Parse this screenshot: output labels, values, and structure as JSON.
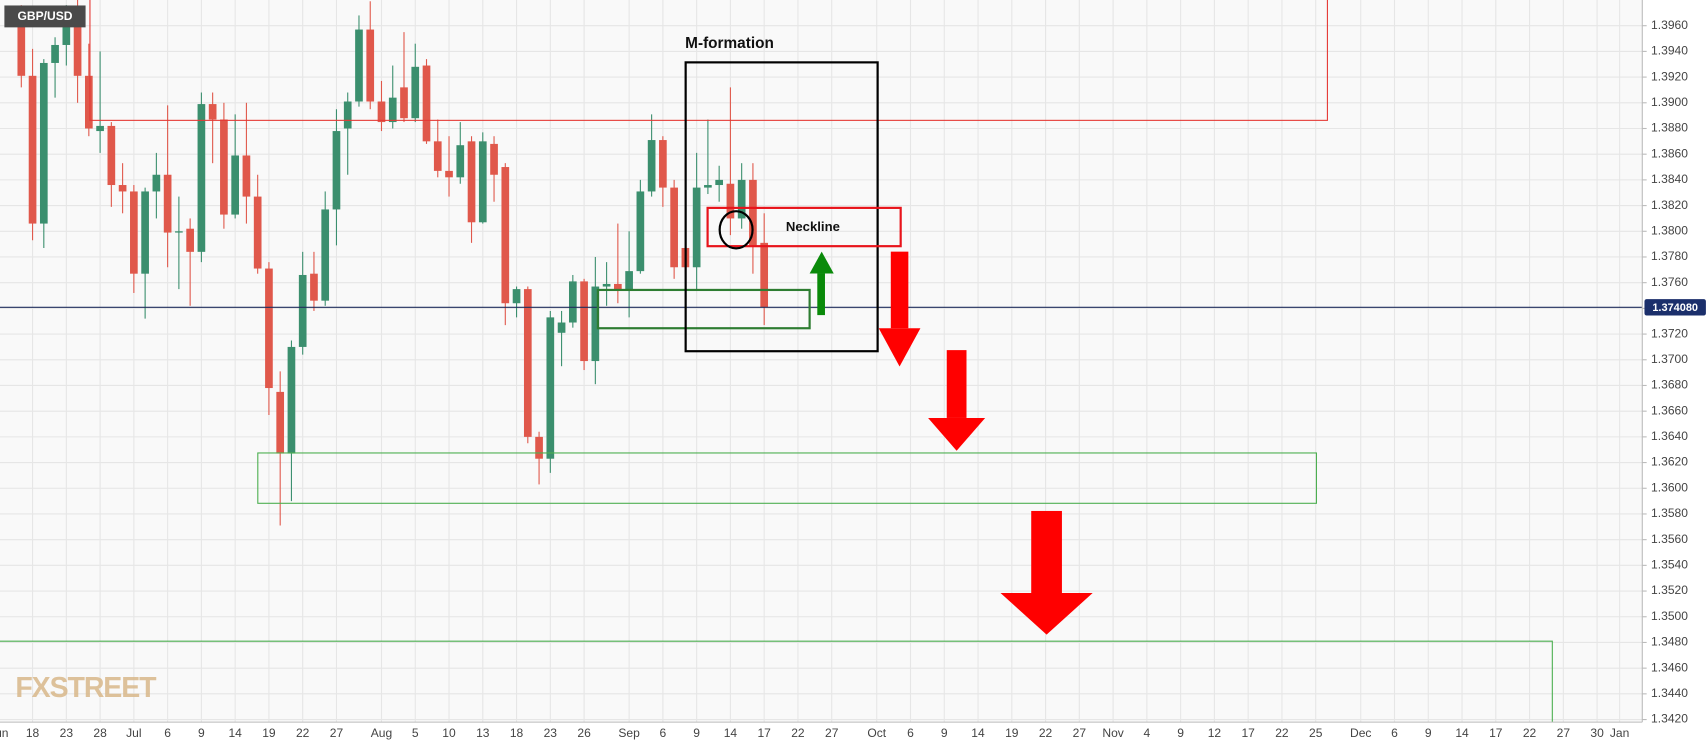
{
  "chart_data": {
    "type": "candlestick",
    "symbol": "GBP/USD",
    "watermark": "FXSTREET",
    "up_color": "#3b8f6e",
    "down_color": "#e0584b",
    "grid": true,
    "ylim": [
      1.3418,
      1.398
    ],
    "yticks": [
      {
        "value": 1.342,
        "label": "1.3420"
      },
      {
        "value": 1.344,
        "label": "1.3440"
      },
      {
        "value": 1.346,
        "label": "1.3460"
      },
      {
        "value": 1.348,
        "label": "1.3480"
      },
      {
        "value": 1.35,
        "label": "1.3500"
      },
      {
        "value": 1.352,
        "label": "1.3520"
      },
      {
        "value": 1.354,
        "label": "1.3540"
      },
      {
        "value": 1.356,
        "label": "1.3560"
      },
      {
        "value": 1.358,
        "label": "1.3580"
      },
      {
        "value": 1.36,
        "label": "1.3600"
      },
      {
        "value": 1.362,
        "label": "1.3620"
      },
      {
        "value": 1.364,
        "label": "1.3640"
      },
      {
        "value": 1.366,
        "label": "1.3660"
      },
      {
        "value": 1.368,
        "label": "1.3680"
      },
      {
        "value": 1.37,
        "label": "1.3700"
      },
      {
        "value": 1.372,
        "label": "1.3720"
      },
      {
        "value": 1.374,
        "label": "1.3740"
      },
      {
        "value": 1.376,
        "label": "1.3760"
      },
      {
        "value": 1.378,
        "label": "1.3780"
      },
      {
        "value": 1.38,
        "label": "1.3800"
      },
      {
        "value": 1.382,
        "label": "1.3820"
      },
      {
        "value": 1.384,
        "label": "1.3840"
      },
      {
        "value": 1.386,
        "label": "1.3860"
      },
      {
        "value": 1.388,
        "label": "1.3880"
      },
      {
        "value": 1.39,
        "label": "1.3900"
      },
      {
        "value": 1.392,
        "label": "1.3920"
      },
      {
        "value": 1.394,
        "label": "1.3940"
      },
      {
        "value": 1.396,
        "label": "1.3960"
      }
    ],
    "last_price": {
      "value": 1.37408,
      "label": "1.374080"
    },
    "annotations": {
      "pattern": "M-formation",
      "neckline": "Neckline"
    },
    "categories": [
      "Jun",
      null,
      null,
      "18",
      null,
      null,
      "23",
      null,
      null,
      "28",
      null,
      null,
      "Jul",
      null,
      null,
      "6",
      null,
      null,
      "9",
      null,
      null,
      "14",
      null,
      null,
      "19",
      null,
      null,
      "22",
      null,
      null,
      "27",
      null,
      null,
      null,
      "Aug",
      null,
      null,
      "5",
      null,
      null,
      "10",
      null,
      null,
      "13",
      null,
      null,
      "18",
      null,
      null,
      "23",
      null,
      null,
      "26",
      null,
      null,
      null,
      "Sep",
      null,
      null,
      "6",
      null,
      null,
      "9",
      null,
      null,
      "14",
      null,
      null,
      "17",
      null,
      null,
      "22",
      null,
      null,
      "27",
      null,
      null,
      null,
      "Oct",
      null,
      null,
      "6",
      null,
      null,
      "9",
      null,
      null,
      "14",
      null,
      null,
      "19",
      null,
      null,
      "22",
      null,
      null,
      "27",
      null,
      null,
      "Nov",
      null,
      null,
      "4",
      null,
      null,
      "9",
      null,
      null,
      "12",
      null,
      null,
      "17",
      null,
      null,
      "22",
      null,
      null,
      "25",
      null,
      null,
      null,
      "Dec",
      null,
      null,
      "6",
      null,
      null,
      "9",
      null,
      null,
      "14",
      null,
      null,
      "17",
      null,
      null,
      "22",
      null,
      null,
      "27",
      null,
      null,
      "30",
      null,
      "Jan",
      null,
      null
    ],
    "open": [
      null,
      null,
      1.3959,
      1.3921,
      1.3806,
      1.3931,
      1.3945,
      1.3968,
      1.3921,
      1.3878,
      1.3882,
      1.3836,
      1.3831,
      1.3767,
      1.3831,
      1.3844,
      1.3799,
      1.3802,
      1.3784,
      1.3899,
      1.3887,
      1.3813,
      1.3859,
      1.3827,
      1.3771,
      1.3675,
      1.3627,
      1.371,
      1.3767,
      1.3746,
      1.3817,
      1.388,
      1.3901,
      1.3957,
      1.3901,
      1.3885,
      1.3912,
      1.3888,
      1.3929,
      1.387,
      1.3847,
      1.3842,
      1.387,
      1.3807,
      1.3868,
      1.385,
      1.3744,
      1.3755,
      1.364,
      1.3623,
      1.3721,
      1.3729,
      1.3761,
      1.3699,
      1.3757,
      1.3759,
      1.3755,
      1.3769,
      1.3831,
      1.3871,
      1.3834,
      1.3787,
      1.3772,
      1.3834,
      1.3836,
      1.3837,
      1.381,
      1.384,
      1.3791,
      null,
      null,
      null,
      null,
      null,
      null,
      null,
      null,
      null,
      null,
      null,
      null,
      null,
      null,
      null,
      null,
      null,
      null,
      null,
      null,
      null,
      null,
      null,
      null,
      null,
      null,
      null,
      null,
      null,
      null,
      null,
      null,
      null,
      null,
      null,
      null,
      null,
      null,
      null,
      null,
      null,
      null,
      null,
      null,
      null,
      null,
      null,
      null,
      null,
      null,
      null,
      null,
      null,
      null,
      null,
      null,
      null,
      null,
      null,
      null,
      null,
      null,
      null,
      null,
      null,
      null,
      null,
      null,
      null,
      null,
      null,
      null,
      null,
      null,
      null,
      null,
      null,
      null
    ],
    "high": [
      null,
      null,
      1.3976,
      1.3942,
      1.3934,
      1.3951,
      1.3976,
      1.398,
      1.3946,
      1.394,
      1.3885,
      1.3853,
      1.3836,
      1.3834,
      1.3861,
      1.3898,
      1.3827,
      1.381,
      1.3908,
      1.3908,
      1.39,
      1.3891,
      1.39,
      1.3844,
      1.3776,
      1.3691,
      1.3715,
      1.3784,
      1.3784,
      1.3831,
      1.3895,
      1.3908,
      1.3968,
      1.3979,
      1.3917,
      1.3929,
      1.3955,
      1.3946,
      1.3934,
      1.3887,
      1.3874,
      1.3885,
      1.3874,
      1.3877,
      1.3874,
      1.3853,
      1.3757,
      1.3757,
      1.3644,
      1.3738,
      1.3738,
      1.3766,
      1.3763,
      1.378,
      1.3776,
      1.3806,
      1.38,
      1.384,
      1.3891,
      1.3874,
      1.384,
      1.3853,
      1.3861,
      1.3887,
      1.3851,
      1.3912,
      1.3853,
      1.3853,
      1.3814,
      null,
      null,
      null,
      null,
      null,
      null,
      null,
      null,
      null,
      null,
      null,
      null,
      null,
      null,
      null,
      null,
      null,
      null,
      null,
      null,
      null,
      null,
      null,
      null,
      null,
      null,
      null,
      null,
      null,
      null,
      null,
      null,
      null,
      null,
      null,
      null,
      null,
      null,
      null,
      null,
      null,
      null,
      null,
      null,
      null,
      null,
      null,
      null,
      null,
      null,
      null,
      null,
      null,
      null,
      null,
      null,
      null,
      null,
      null,
      null,
      null,
      null,
      null,
      null,
      null,
      null,
      null,
      null,
      null,
      null,
      null,
      null,
      null,
      null,
      null,
      null,
      null,
      null
    ],
    "low": [
      null,
      null,
      1.3912,
      1.3793,
      1.3787,
      1.3904,
      1.3929,
      1.39,
      1.3874,
      1.3861,
      1.3819,
      1.3814,
      1.3752,
      1.3732,
      1.381,
      1.3772,
      1.3755,
      1.3742,
      1.3776,
      1.3853,
      1.3802,
      1.381,
      1.3806,
      1.3767,
      1.3657,
      1.3571,
      1.359,
      1.3704,
      1.3738,
      1.3742,
      1.3789,
      1.3844,
      1.3897,
      1.3895,
      1.3878,
      1.388,
      1.3885,
      1.3885,
      1.3868,
      1.3842,
      1.3827,
      1.3837,
      1.3791,
      1.3806,
      1.3823,
      1.3727,
      1.3733,
      1.3635,
      1.3603,
      1.3612,
      1.3695,
      1.3725,
      1.3692,
      1.3681,
      1.3742,
      1.3744,
      1.3733,
      1.3767,
      1.3827,
      1.3819,
      1.3763,
      1.3767,
      1.3755,
      1.3829,
      1.3823,
      1.3797,
      1.3802,
      1.3767,
      1.3727,
      null,
      null,
      null,
      null,
      null,
      null,
      null,
      null,
      null,
      null,
      null,
      null,
      null,
      null,
      null,
      null,
      null,
      null,
      null,
      null,
      null,
      null,
      null,
      null,
      null,
      null,
      null,
      null,
      null,
      null,
      null,
      null,
      null,
      null,
      null,
      null,
      null,
      null,
      null,
      null,
      null,
      null,
      null,
      null,
      null,
      null,
      null,
      null,
      null,
      null,
      null,
      null,
      null,
      null,
      null,
      null,
      null,
      null,
      null,
      null,
      null,
      null,
      null,
      null,
      null,
      null,
      null,
      null,
      null,
      null,
      null,
      null,
      null,
      null,
      null,
      null,
      null,
      null
    ],
    "close": [
      null,
      null,
      1.3921,
      1.3806,
      1.3931,
      1.3945,
      1.3962,
      1.3921,
      1.388,
      1.3882,
      1.3836,
      1.3831,
      1.3767,
      1.3831,
      1.3844,
      1.3799,
      1.38,
      1.3784,
      1.3899,
      1.3887,
      1.3813,
      1.3859,
      1.3827,
      1.3771,
      1.3678,
      1.3627,
      1.371,
      1.3766,
      1.3746,
      1.3817,
      1.3878,
      1.3901,
      1.3957,
      1.3901,
      1.3885,
      1.3904,
      1.3888,
      1.3928,
      1.387,
      1.3847,
      1.3842,
      1.3867,
      1.3807,
      1.387,
      1.3844,
      1.3744,
      1.3755,
      1.364,
      1.3623,
      1.3733,
      1.3729,
      1.3761,
      1.3699,
      1.3757,
      1.3759,
      1.3755,
      1.3769,
      1.3831,
      1.3871,
      1.3834,
      1.3772,
      1.3772,
      1.3834,
      1.3836,
      1.384,
      1.381,
      1.384,
      1.3789,
      1.37408,
      null,
      null,
      null,
      null,
      null,
      null,
      null,
      null,
      null,
      null,
      null,
      null,
      null,
      null,
      null,
      null,
      null,
      null,
      null,
      null,
      null,
      null,
      null,
      null,
      null,
      null,
      null,
      null,
      null,
      null,
      null,
      null,
      null,
      null,
      null,
      null,
      null,
      null,
      null,
      null,
      null,
      null,
      null,
      null,
      null,
      null,
      null,
      null,
      null,
      null,
      null,
      null,
      null,
      null,
      null,
      null,
      null,
      null,
      null,
      null,
      null,
      null,
      null,
      null,
      null,
      null,
      null,
      null,
      null,
      null,
      null,
      null,
      null,
      null,
      null,
      null,
      null,
      null
    ]
  }
}
